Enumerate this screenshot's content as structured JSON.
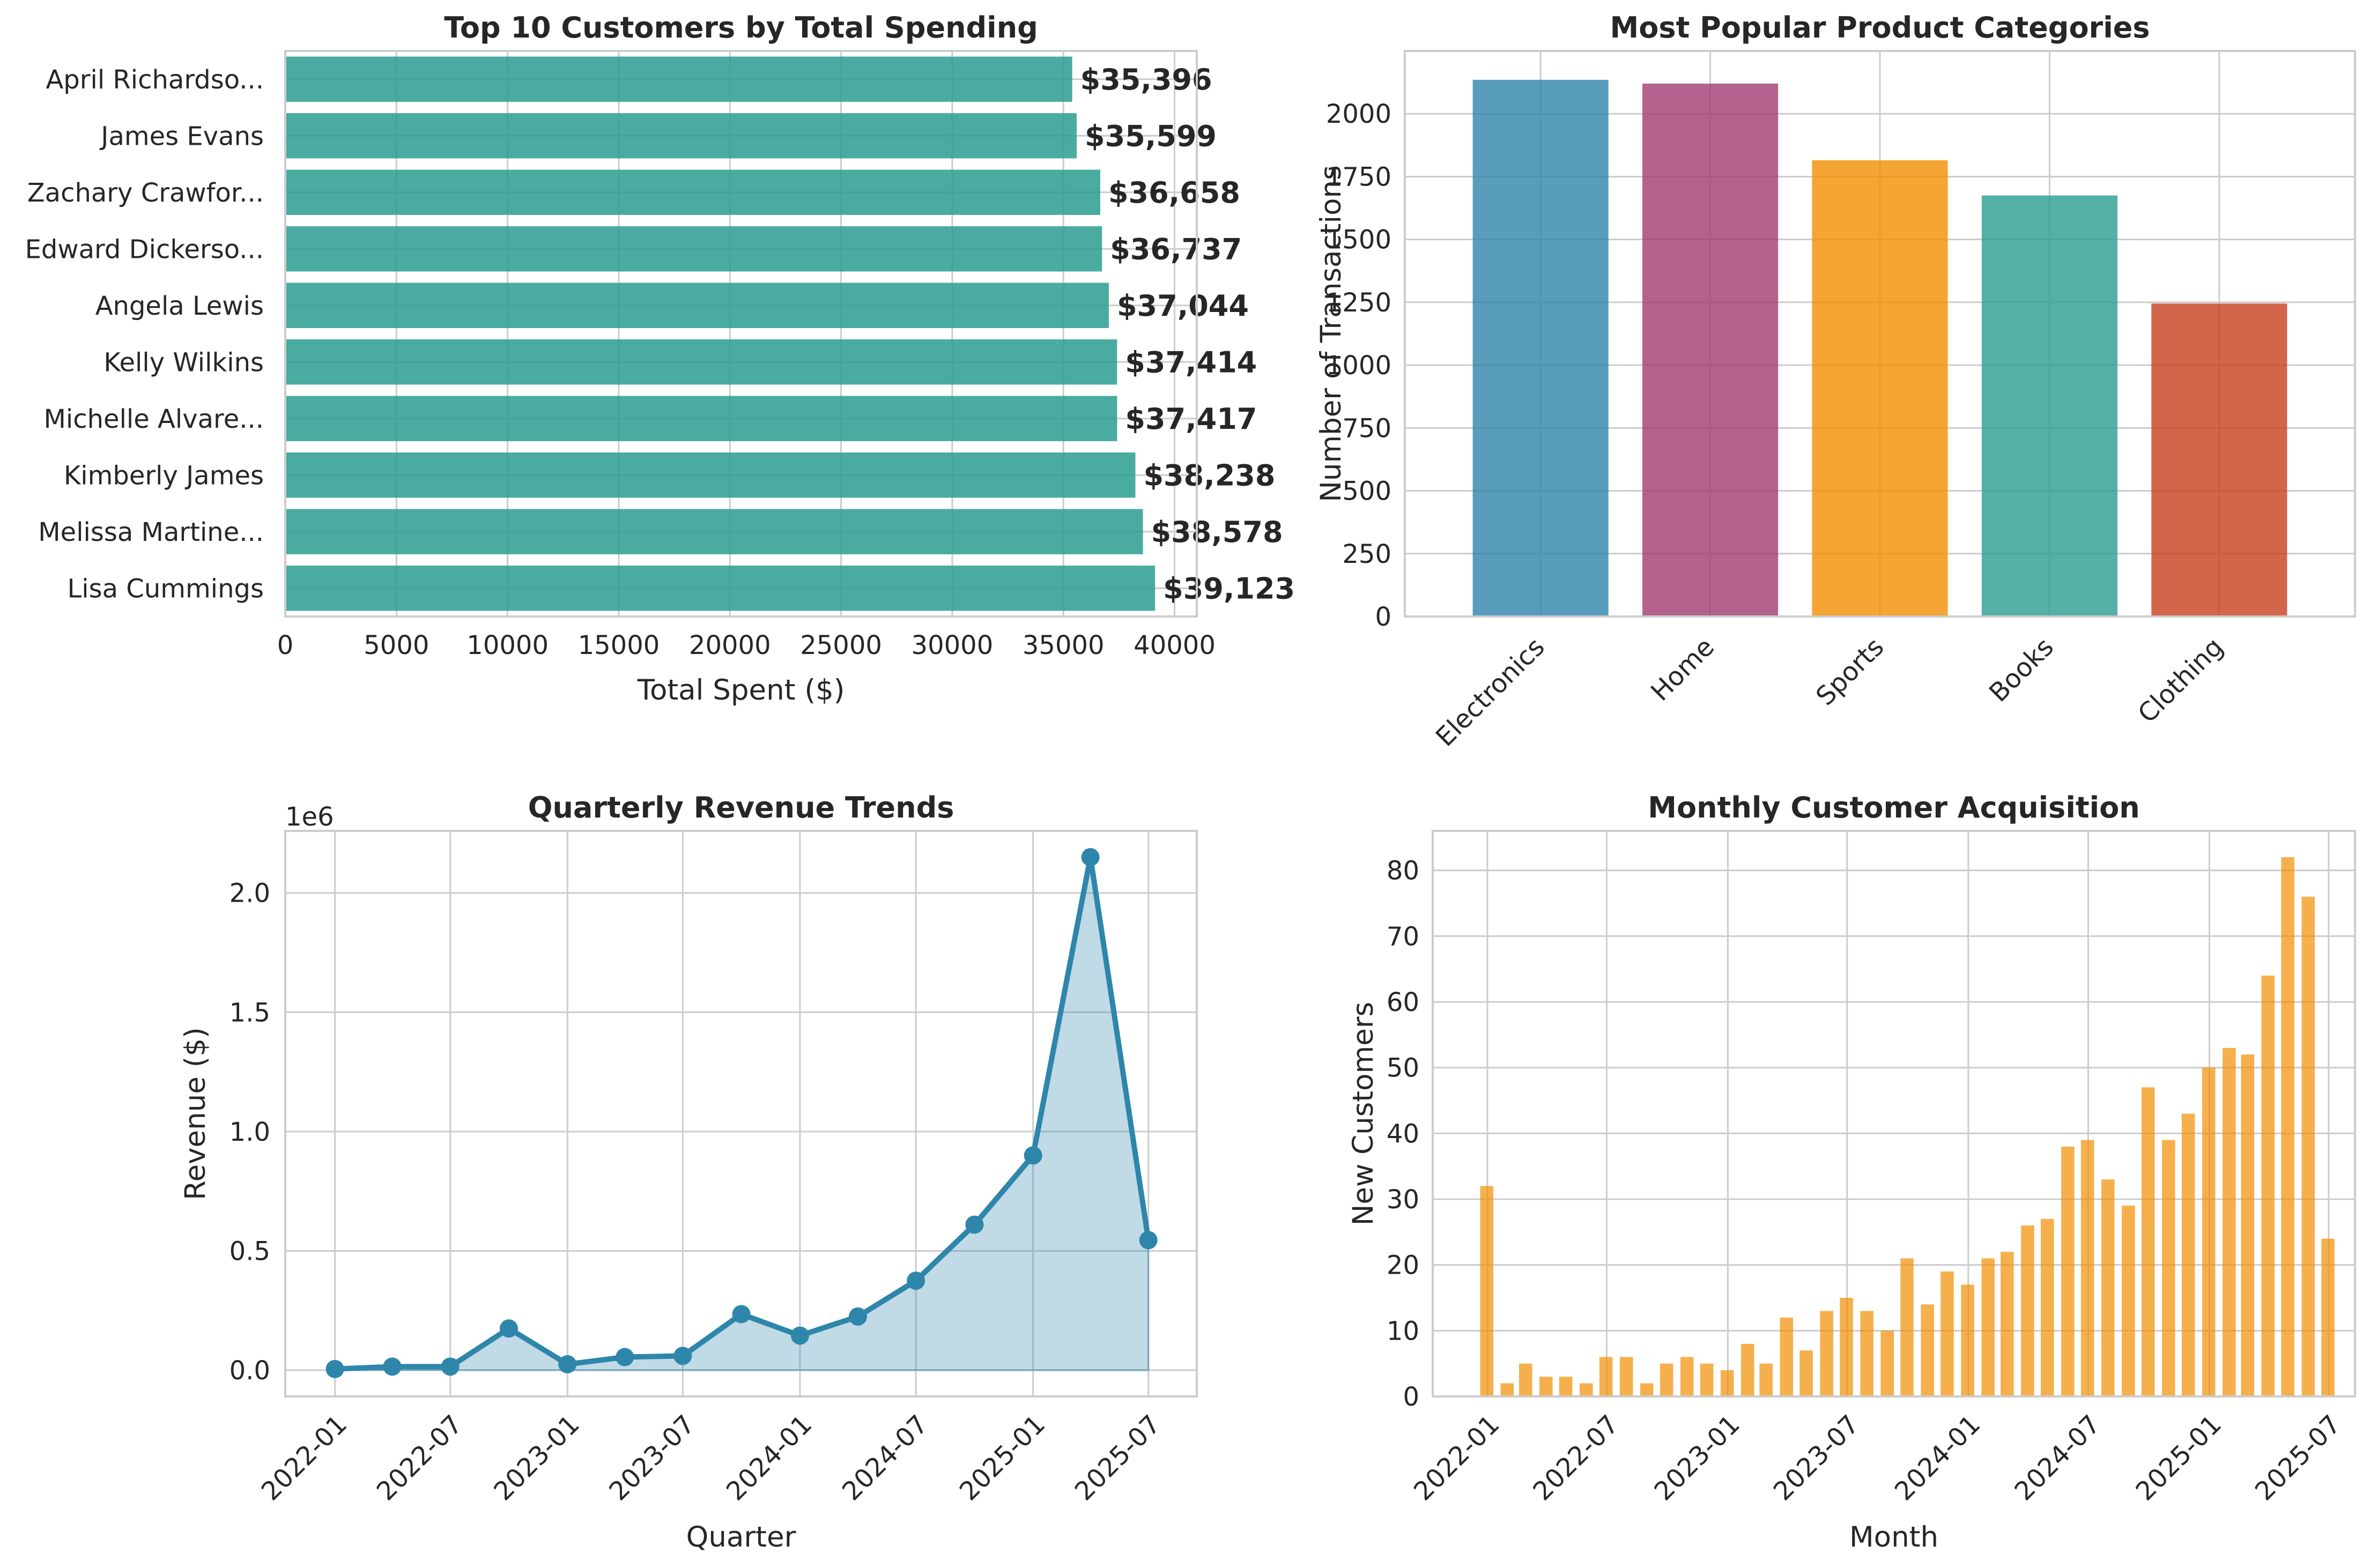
{
  "chart_data": [
    {
      "type": "bar",
      "orientation": "horizontal",
      "title": "Top 10 Customers by Total Spending",
      "xlabel": "Total Spent ($)",
      "ylabel": "",
      "xlim": [
        0,
        41000
      ],
      "x_ticks": [
        0,
        5000,
        10000,
        15000,
        20000,
        25000,
        30000,
        35000,
        40000
      ],
      "x_tick_labels": [
        "0",
        "5000",
        "10000",
        "15000",
        "20000",
        "25000",
        "30000",
        "35000",
        "40000"
      ],
      "categories": [
        "April Richardso...",
        "James Evans",
        "Zachary Crawfor...",
        "Edward Dickerso...",
        "Angela Lewis",
        "Kelly Wilkins",
        "Michelle Alvare...",
        "Kimberly James",
        "Melissa Martine...",
        "Lisa Cummings"
      ],
      "values": [
        35396,
        35599,
        36658,
        36737,
        37044,
        37414,
        37417,
        38238,
        38578,
        39123
      ],
      "value_labels": [
        "$35,396",
        "$35,599",
        "$36,658",
        "$36,737",
        "$37,044",
        "$37,414",
        "$37,417",
        "$38,238",
        "$38,578",
        "$39,123"
      ],
      "color": "#2a9d8f",
      "grid": true
    },
    {
      "type": "bar",
      "title": "Most Popular Product Categories",
      "xlabel": "",
      "ylabel": "Number of Transactions",
      "ylim": [
        0,
        2250
      ],
      "y_ticks": [
        0,
        250,
        500,
        750,
        1000,
        1250,
        1500,
        1750,
        2000
      ],
      "y_tick_labels": [
        "0",
        "250",
        "500",
        "750",
        "1000",
        "1250",
        "1500",
        "1750",
        "2000"
      ],
      "categories": [
        "Electronics",
        "Home",
        "Sports",
        "Books",
        "Clothing"
      ],
      "values": [
        2135,
        2120,
        1815,
        1675,
        1245
      ],
      "colors": [
        "#2e86ab",
        "#a23b72",
        "#f18f01",
        "#2a9d8f",
        "#c73e1d"
      ],
      "grid": true
    },
    {
      "type": "area",
      "title": "Quarterly Revenue Trends",
      "xlabel": "Quarter",
      "ylabel": "Revenue ($)",
      "y_offset_label": "1e6",
      "xlim": [
        "2021-10-15",
        "2025-09-15"
      ],
      "ylim": [
        -0.11,
        2.26
      ],
      "y_ticks": [
        0.0,
        0.5,
        1.0,
        1.5,
        2.0
      ],
      "y_tick_labels": [
        "0.0",
        "0.5",
        "1.0",
        "1.5",
        "2.0"
      ],
      "x_ticks": [
        "2022-01-01",
        "2022-07-01",
        "2023-01-01",
        "2023-07-01",
        "2024-01-01",
        "2024-07-01",
        "2025-01-01",
        "2025-07-01"
      ],
      "x_tick_labels": [
        "2022-01",
        "2022-07",
        "2023-01",
        "2023-07",
        "2024-01",
        "2024-07",
        "2025-01",
        "2025-07"
      ],
      "x": [
        "2022-01-01",
        "2022-04-01",
        "2022-07-01",
        "2022-10-01",
        "2023-01-01",
        "2023-04-01",
        "2023-07-01",
        "2023-10-01",
        "2024-01-01",
        "2024-04-01",
        "2024-07-01",
        "2024-10-01",
        "2025-01-01",
        "2025-04-01",
        "2025-07-01"
      ],
      "y": [
        0.005,
        0.015,
        0.015,
        0.175,
        0.025,
        0.055,
        0.06,
        0.235,
        0.145,
        0.225,
        0.375,
        0.61,
        0.9,
        2.15,
        0.545
      ],
      "color": "#2e86ab",
      "grid": true
    },
    {
      "type": "bar",
      "title": "Monthly Customer Acquisition",
      "xlabel": "Month",
      "ylabel": "New Customers",
      "xlim": [
        "2021-10-10",
        "2025-08-10"
      ],
      "ylim": [
        0,
        86
      ],
      "y_ticks": [
        0,
        10,
        20,
        30,
        40,
        50,
        60,
        70,
        80
      ],
      "y_tick_labels": [
        "0",
        "10",
        "20",
        "30",
        "40",
        "50",
        "60",
        "70",
        "80"
      ],
      "x_ticks": [
        "2022-01-01",
        "2022-07-01",
        "2023-01-01",
        "2023-07-01",
        "2024-01-01",
        "2024-07-01",
        "2025-01-01",
        "2025-07-01"
      ],
      "x_tick_labels": [
        "2022-01",
        "2022-07",
        "2023-01",
        "2023-07",
        "2024-01",
        "2024-07",
        "2025-01",
        "2025-07"
      ],
      "x": [
        "2021-12",
        "2022-01",
        "2022-02",
        "2022-03",
        "2022-04",
        "2022-05",
        "2022-06",
        "2022-07",
        "2022-08",
        "2022-09",
        "2022-10",
        "2022-11",
        "2022-12",
        "2023-01",
        "2023-02",
        "2023-03",
        "2023-04",
        "2023-05",
        "2023-06",
        "2023-07",
        "2023-08",
        "2023-09",
        "2023-10",
        "2023-11",
        "2023-12",
        "2024-01",
        "2024-02",
        "2024-03",
        "2024-04",
        "2024-05",
        "2024-06",
        "2024-07",
        "2024-08",
        "2024-09",
        "2024-10",
        "2024-11",
        "2024-12",
        "2025-01",
        "2025-02",
        "2025-03",
        "2025-04",
        "2025-05",
        "2025-06"
      ],
      "values": [
        32,
        2,
        5,
        3,
        3,
        2,
        6,
        6,
        2,
        5,
        6,
        5,
        4,
        8,
        5,
        12,
        7,
        13,
        15,
        13,
        10,
        21,
        14,
        19,
        17,
        21,
        22,
        26,
        27,
        38,
        39,
        33,
        29,
        47,
        39,
        43,
        50,
        53,
        52,
        64,
        82,
        76,
        24
      ],
      "color": "#f18f01",
      "grid": true
    }
  ]
}
